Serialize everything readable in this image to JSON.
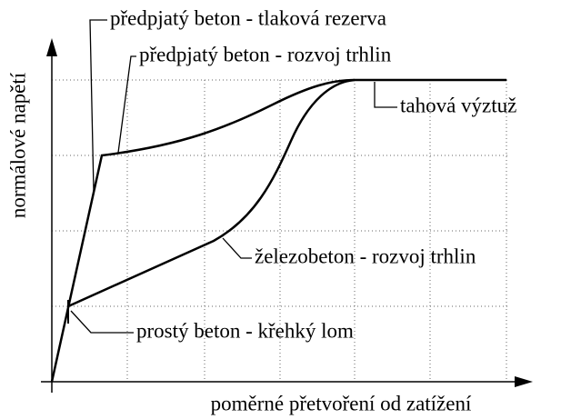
{
  "labels": {
    "prestressed_reserve": "předpjatý beton - tlaková rezerva",
    "prestressed_cracks": "předpjatý beton - rozvoj trhlin",
    "tension_reinforcement": "tahová výztuž",
    "reinforced_cracks": "železobeton - rozvoj trhlin",
    "plain_concrete": "prostý beton - křehký lom"
  },
  "axes": {
    "y_label": "normálové napětí",
    "x_label": "poměrné přetvoření od zatížení"
  }
}
